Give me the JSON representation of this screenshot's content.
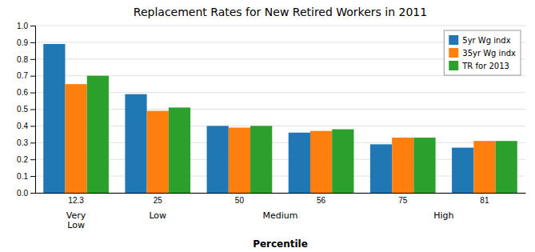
{
  "chart_data": {
    "type": "bar",
    "title": "Replacement Rates for New Retired Workers in 2011",
    "xlabel": "Percentile",
    "categories": [
      "12.3",
      "25",
      "50",
      "56",
      "75",
      "81"
    ],
    "series": [
      {
        "name": "5yr Wg indx",
        "values": [
          0.89,
          0.59,
          0.4,
          0.36,
          0.29,
          0.27
        ]
      },
      {
        "name": "35yr Wg indx",
        "values": [
          0.65,
          0.49,
          0.39,
          0.37,
          0.33,
          0.31
        ]
      },
      {
        "name": "TR for 2013",
        "values": [
          0.7,
          0.51,
          0.4,
          0.38,
          0.33,
          0.31
        ]
      }
    ],
    "annotations": [
      {
        "text": "Very\nLow",
        "categories": [
          "12.3"
        ]
      },
      {
        "text": "Low",
        "categories": [
          "25"
        ]
      },
      {
        "text": "Medium",
        "categories": [
          "50",
          "56"
        ]
      },
      {
        "text": "High",
        "categories": [
          "75",
          "81"
        ]
      }
    ],
    "ylim": [
      0.0,
      1.0
    ],
    "yticks": [
      {
        "value": 0.0,
        "label": "0.0"
      },
      0.1,
      0.2,
      0.3,
      0.4,
      0.5,
      0.6,
      0.7,
      0.8,
      0.9,
      {
        "value": 1.0,
        "label": "1.0"
      }
    ],
    "grid": true,
    "legend": "upper right"
  }
}
